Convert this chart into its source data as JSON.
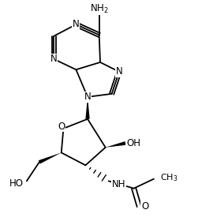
{
  "background": "#ffffff",
  "bond_color": "#000000",
  "figsize": [
    2.7,
    2.8
  ],
  "dpi": 100,
  "xlim": [
    0,
    10
  ],
  "ylim": [
    0,
    10.4
  ]
}
